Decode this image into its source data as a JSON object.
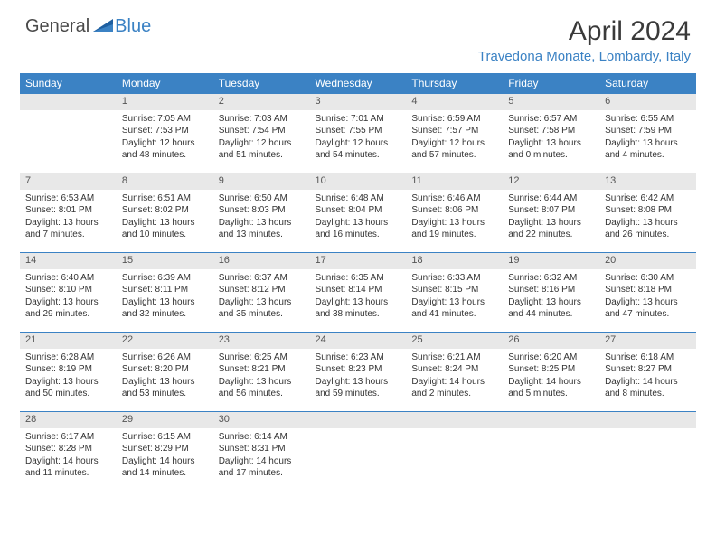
{
  "logo": {
    "text1": "General",
    "text2": "Blue"
  },
  "title": "April 2024",
  "location": "Travedona Monate, Lombardy, Italy",
  "colors": {
    "header_bg": "#3b82c4",
    "daynum_bg": "#e8e8e8",
    "row_divider": "#3b82c4",
    "text": "#333333",
    "logo_gray": "#4a4a4a",
    "logo_blue": "#3b82c4"
  },
  "day_headers": [
    "Sunday",
    "Monday",
    "Tuesday",
    "Wednesday",
    "Thursday",
    "Friday",
    "Saturday"
  ],
  "weeks": [
    {
      "nums": [
        "",
        "1",
        "2",
        "3",
        "4",
        "5",
        "6"
      ],
      "cells": [
        [],
        [
          "Sunrise: 7:05 AM",
          "Sunset: 7:53 PM",
          "Daylight: 12 hours",
          "and 48 minutes."
        ],
        [
          "Sunrise: 7:03 AM",
          "Sunset: 7:54 PM",
          "Daylight: 12 hours",
          "and 51 minutes."
        ],
        [
          "Sunrise: 7:01 AM",
          "Sunset: 7:55 PM",
          "Daylight: 12 hours",
          "and 54 minutes."
        ],
        [
          "Sunrise: 6:59 AM",
          "Sunset: 7:57 PM",
          "Daylight: 12 hours",
          "and 57 minutes."
        ],
        [
          "Sunrise: 6:57 AM",
          "Sunset: 7:58 PM",
          "Daylight: 13 hours",
          "and 0 minutes."
        ],
        [
          "Sunrise: 6:55 AM",
          "Sunset: 7:59 PM",
          "Daylight: 13 hours",
          "and 4 minutes."
        ]
      ]
    },
    {
      "nums": [
        "7",
        "8",
        "9",
        "10",
        "11",
        "12",
        "13"
      ],
      "cells": [
        [
          "Sunrise: 6:53 AM",
          "Sunset: 8:01 PM",
          "Daylight: 13 hours",
          "and 7 minutes."
        ],
        [
          "Sunrise: 6:51 AM",
          "Sunset: 8:02 PM",
          "Daylight: 13 hours",
          "and 10 minutes."
        ],
        [
          "Sunrise: 6:50 AM",
          "Sunset: 8:03 PM",
          "Daylight: 13 hours",
          "and 13 minutes."
        ],
        [
          "Sunrise: 6:48 AM",
          "Sunset: 8:04 PM",
          "Daylight: 13 hours",
          "and 16 minutes."
        ],
        [
          "Sunrise: 6:46 AM",
          "Sunset: 8:06 PM",
          "Daylight: 13 hours",
          "and 19 minutes."
        ],
        [
          "Sunrise: 6:44 AM",
          "Sunset: 8:07 PM",
          "Daylight: 13 hours",
          "and 22 minutes."
        ],
        [
          "Sunrise: 6:42 AM",
          "Sunset: 8:08 PM",
          "Daylight: 13 hours",
          "and 26 minutes."
        ]
      ]
    },
    {
      "nums": [
        "14",
        "15",
        "16",
        "17",
        "18",
        "19",
        "20"
      ],
      "cells": [
        [
          "Sunrise: 6:40 AM",
          "Sunset: 8:10 PM",
          "Daylight: 13 hours",
          "and 29 minutes."
        ],
        [
          "Sunrise: 6:39 AM",
          "Sunset: 8:11 PM",
          "Daylight: 13 hours",
          "and 32 minutes."
        ],
        [
          "Sunrise: 6:37 AM",
          "Sunset: 8:12 PM",
          "Daylight: 13 hours",
          "and 35 minutes."
        ],
        [
          "Sunrise: 6:35 AM",
          "Sunset: 8:14 PM",
          "Daylight: 13 hours",
          "and 38 minutes."
        ],
        [
          "Sunrise: 6:33 AM",
          "Sunset: 8:15 PM",
          "Daylight: 13 hours",
          "and 41 minutes."
        ],
        [
          "Sunrise: 6:32 AM",
          "Sunset: 8:16 PM",
          "Daylight: 13 hours",
          "and 44 minutes."
        ],
        [
          "Sunrise: 6:30 AM",
          "Sunset: 8:18 PM",
          "Daylight: 13 hours",
          "and 47 minutes."
        ]
      ]
    },
    {
      "nums": [
        "21",
        "22",
        "23",
        "24",
        "25",
        "26",
        "27"
      ],
      "cells": [
        [
          "Sunrise: 6:28 AM",
          "Sunset: 8:19 PM",
          "Daylight: 13 hours",
          "and 50 minutes."
        ],
        [
          "Sunrise: 6:26 AM",
          "Sunset: 8:20 PM",
          "Daylight: 13 hours",
          "and 53 minutes."
        ],
        [
          "Sunrise: 6:25 AM",
          "Sunset: 8:21 PM",
          "Daylight: 13 hours",
          "and 56 minutes."
        ],
        [
          "Sunrise: 6:23 AM",
          "Sunset: 8:23 PM",
          "Daylight: 13 hours",
          "and 59 minutes."
        ],
        [
          "Sunrise: 6:21 AM",
          "Sunset: 8:24 PM",
          "Daylight: 14 hours",
          "and 2 minutes."
        ],
        [
          "Sunrise: 6:20 AM",
          "Sunset: 8:25 PM",
          "Daylight: 14 hours",
          "and 5 minutes."
        ],
        [
          "Sunrise: 6:18 AM",
          "Sunset: 8:27 PM",
          "Daylight: 14 hours",
          "and 8 minutes."
        ]
      ]
    },
    {
      "nums": [
        "28",
        "29",
        "30",
        "",
        "",
        "",
        ""
      ],
      "cells": [
        [
          "Sunrise: 6:17 AM",
          "Sunset: 8:28 PM",
          "Daylight: 14 hours",
          "and 11 minutes."
        ],
        [
          "Sunrise: 6:15 AM",
          "Sunset: 8:29 PM",
          "Daylight: 14 hours",
          "and 14 minutes."
        ],
        [
          "Sunrise: 6:14 AM",
          "Sunset: 8:31 PM",
          "Daylight: 14 hours",
          "and 17 minutes."
        ],
        [],
        [],
        [],
        []
      ]
    }
  ]
}
